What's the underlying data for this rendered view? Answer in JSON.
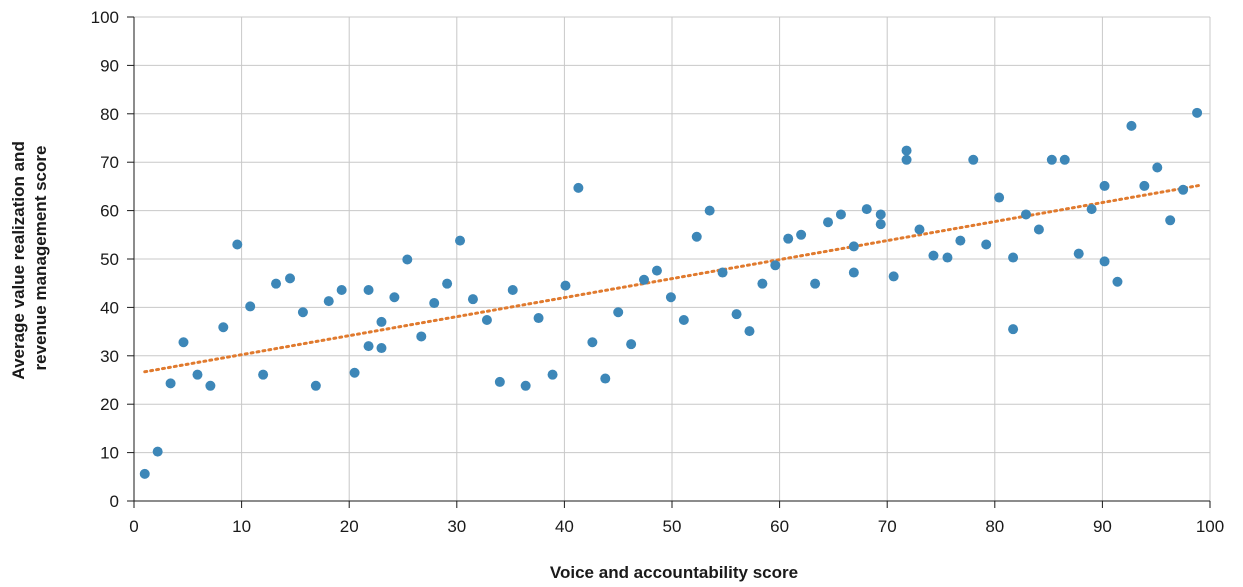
{
  "chart_data": {
    "type": "scatter",
    "title": "",
    "xlabel": "Voice and accountability score",
    "ylabel_lines": [
      "Average value realization and",
      "revenue management score"
    ],
    "xlim": [
      0,
      100
    ],
    "ylim": [
      0,
      100
    ],
    "x_ticks": [
      "0",
      "10",
      "20",
      "30",
      "40",
      "50",
      "60",
      "70",
      "80",
      "90",
      "100"
    ],
    "y_ticks": [
      "0",
      "10",
      "20",
      "30",
      "40",
      "50",
      "60",
      "70",
      "80",
      "90",
      "100"
    ],
    "grid": true,
    "legend": "none",
    "colors": {
      "points": "#3d87b8",
      "trendline": "#e07a2e"
    },
    "trendline": {
      "style": "dotted",
      "x": [
        1,
        99
      ],
      "y": [
        26.7,
        65.2
      ]
    },
    "points": [
      {
        "x": 1,
        "y": 5.6
      },
      {
        "x": 2.2,
        "y": 10.2
      },
      {
        "x": 3.4,
        "y": 24.3
      },
      {
        "x": 4.6,
        "y": 32.8
      },
      {
        "x": 5.9,
        "y": 26.1
      },
      {
        "x": 7.1,
        "y": 23.8
      },
      {
        "x": 8.3,
        "y": 35.9
      },
      {
        "x": 9.6,
        "y": 53
      },
      {
        "x": 10.8,
        "y": 40.2
      },
      {
        "x": 12,
        "y": 26.1
      },
      {
        "x": 13.2,
        "y": 44.9
      },
      {
        "x": 14.5,
        "y": 46
      },
      {
        "x": 15.7,
        "y": 39
      },
      {
        "x": 16.9,
        "y": 23.8
      },
      {
        "x": 18.1,
        "y": 41.3
      },
      {
        "x": 19.3,
        "y": 43.6
      },
      {
        "x": 20.5,
        "y": 26.5
      },
      {
        "x": 21.8,
        "y": 43.6
      },
      {
        "x": 21.8,
        "y": 32
      },
      {
        "x": 23,
        "y": 31.6
      },
      {
        "x": 23,
        "y": 37
      },
      {
        "x": 24.2,
        "y": 42.1
      },
      {
        "x": 25.4,
        "y": 49.9
      },
      {
        "x": 26.7,
        "y": 34
      },
      {
        "x": 27.9,
        "y": 40.9
      },
      {
        "x": 29.1,
        "y": 44.9
      },
      {
        "x": 30.3,
        "y": 53.8
      },
      {
        "x": 31.5,
        "y": 41.7
      },
      {
        "x": 32.8,
        "y": 37.4
      },
      {
        "x": 34,
        "y": 24.6
      },
      {
        "x": 35.2,
        "y": 43.6
      },
      {
        "x": 36.4,
        "y": 23.8
      },
      {
        "x": 37.6,
        "y": 37.8
      },
      {
        "x": 38.9,
        "y": 26.1
      },
      {
        "x": 40.1,
        "y": 44.5
      },
      {
        "x": 41.3,
        "y": 64.7
      },
      {
        "x": 42.6,
        "y": 32.8
      },
      {
        "x": 43.8,
        "y": 25.3
      },
      {
        "x": 45,
        "y": 39
      },
      {
        "x": 46.2,
        "y": 32.4
      },
      {
        "x": 47.4,
        "y": 45.7
      },
      {
        "x": 48.6,
        "y": 47.6
      },
      {
        "x": 49.9,
        "y": 42.1
      },
      {
        "x": 51.1,
        "y": 37.4
      },
      {
        "x": 52.3,
        "y": 54.6
      },
      {
        "x": 53.5,
        "y": 60
      },
      {
        "x": 54.7,
        "y": 47.2
      },
      {
        "x": 56,
        "y": 38.6
      },
      {
        "x": 57.2,
        "y": 35.1
      },
      {
        "x": 58.4,
        "y": 44.9
      },
      {
        "x": 59.6,
        "y": 48.7
      },
      {
        "x": 60.8,
        "y": 54.2
      },
      {
        "x": 62,
        "y": 55
      },
      {
        "x": 63.3,
        "y": 44.9
      },
      {
        "x": 64.5,
        "y": 57.6
      },
      {
        "x": 65.7,
        "y": 59.2
      },
      {
        "x": 66.9,
        "y": 52.6
      },
      {
        "x": 66.9,
        "y": 47.2
      },
      {
        "x": 68.1,
        "y": 60.3
      },
      {
        "x": 69.4,
        "y": 59.2
      },
      {
        "x": 69.4,
        "y": 57.2
      },
      {
        "x": 70.6,
        "y": 46.4
      },
      {
        "x": 71.8,
        "y": 72.4
      },
      {
        "x": 71.8,
        "y": 70.5
      },
      {
        "x": 73,
        "y": 56.1
      },
      {
        "x": 74.3,
        "y": 50.7
      },
      {
        "x": 75.6,
        "y": 50.3
      },
      {
        "x": 76.8,
        "y": 53.8
      },
      {
        "x": 78,
        "y": 70.5
      },
      {
        "x": 79.2,
        "y": 53
      },
      {
        "x": 80.4,
        "y": 62.7
      },
      {
        "x": 81.7,
        "y": 50.3
      },
      {
        "x": 81.7,
        "y": 35.5
      },
      {
        "x": 82.9,
        "y": 59.2
      },
      {
        "x": 84.1,
        "y": 56.1
      },
      {
        "x": 85.3,
        "y": 70.5
      },
      {
        "x": 86.5,
        "y": 70.5
      },
      {
        "x": 87.8,
        "y": 51.1
      },
      {
        "x": 89,
        "y": 60.3
      },
      {
        "x": 90.2,
        "y": 65.1
      },
      {
        "x": 90.2,
        "y": 49.5
      },
      {
        "x": 91.4,
        "y": 45.3
      },
      {
        "x": 92.7,
        "y": 77.5
      },
      {
        "x": 93.9,
        "y": 65.1
      },
      {
        "x": 95.1,
        "y": 68.9
      },
      {
        "x": 96.3,
        "y": 58
      },
      {
        "x": 97.5,
        "y": 64.3
      },
      {
        "x": 98.8,
        "y": 80.2
      }
    ]
  }
}
